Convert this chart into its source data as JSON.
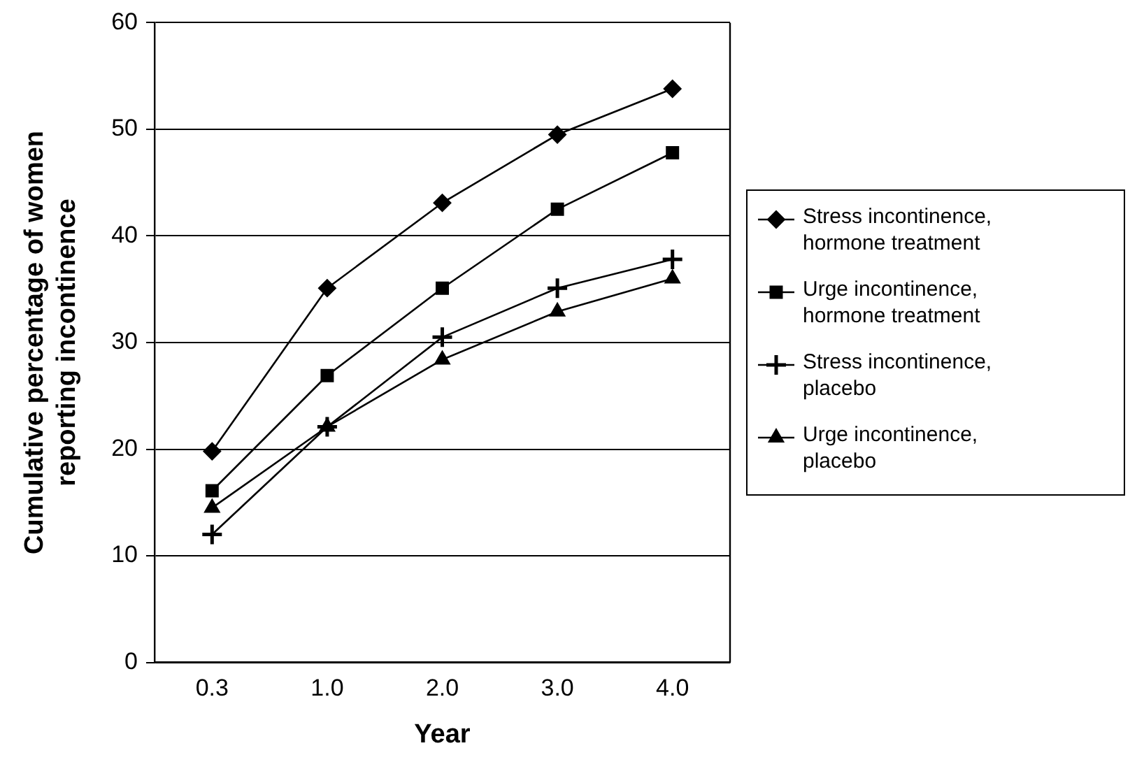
{
  "chart_data": {
    "type": "line",
    "xlabel": "Year",
    "ylabel": "Cumulative percentage of women reporting incontinence",
    "categories": [
      "0.3",
      "1.0",
      "2.0",
      "3.0",
      "4.0"
    ],
    "series": [
      {
        "name": "Stress incontinence, hormone treatment",
        "color": "#000000",
        "marker": "diamond",
        "values": [
          19.8,
          35.1,
          43.1,
          49.5,
          53.8
        ]
      },
      {
        "name": "Urge incontinence, hormone treatment",
        "color": "#000000",
        "marker": "square",
        "values": [
          16.1,
          26.9,
          35.1,
          42.5,
          47.8
        ]
      },
      {
        "name": "Stress incontinence, placebo",
        "color": "#000000",
        "marker": "cross",
        "values": [
          12.0,
          22.1,
          30.5,
          35.1,
          37.8
        ]
      },
      {
        "name": "Urge incontinence, placebo",
        "color": "#000000",
        "marker": "triangle",
        "values": [
          14.5,
          22.1,
          28.4,
          32.9,
          36.0
        ]
      }
    ],
    "ylim": [
      0,
      60
    ],
    "yticks": [
      0,
      10,
      20,
      30,
      40,
      50,
      60
    ],
    "grid": "y",
    "legend": "right",
    "line_style": "solid"
  }
}
